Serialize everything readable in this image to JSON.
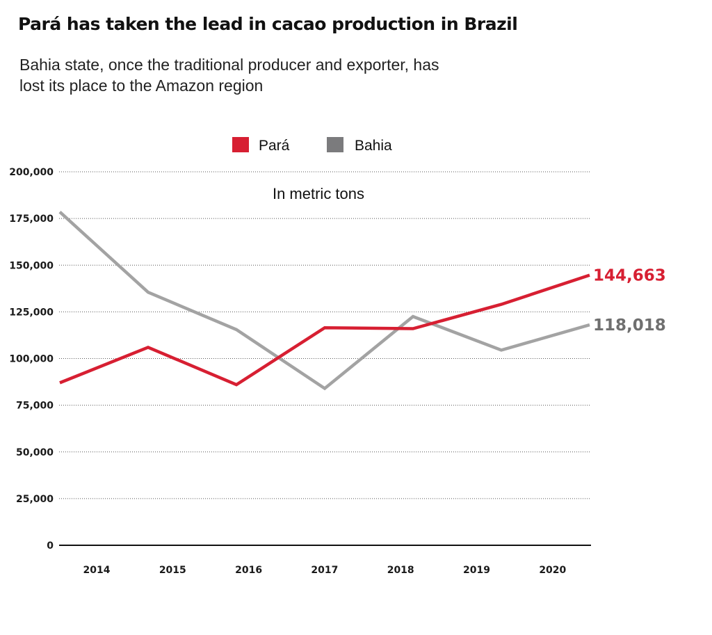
{
  "title": "Pará has taken the lead in cacao production in Brazil",
  "subtitle": "Bahia state, once the traditional producer and exporter, has lost its place to the Amazon region",
  "chart_data": {
    "type": "line",
    "categories": [
      "2014",
      "2015",
      "2016",
      "2017",
      "2018",
      "2019",
      "2020"
    ],
    "series": [
      {
        "name": "Pará",
        "color": "#d71f32",
        "values": [
          87000,
          106000,
          86000,
          116500,
          116000,
          129000,
          144663
        ]
      },
      {
        "name": "Bahia",
        "color": "#a3a3a3",
        "swatch_color": "#7b7b7d",
        "values": [
          178500,
          135500,
          115500,
          84000,
          122500,
          104500,
          118018
        ]
      }
    ],
    "end_labels": [
      {
        "series": "Pará",
        "text": "144,663",
        "color": "#d71f32"
      },
      {
        "series": "Bahia",
        "text": "118,018",
        "color": "#6f6f6f"
      }
    ],
    "annotation": "In metric tons",
    "ylim": [
      0,
      200000
    ],
    "yticks": [
      0,
      25000,
      50000,
      75000,
      100000,
      125000,
      150000,
      175000,
      200000
    ],
    "ytick_labels": [
      "0",
      "25,000",
      "50,000",
      "75,000",
      "100,000",
      "125,000",
      "150,000",
      "175,000",
      "200,000"
    ],
    "grid": "horizontal dotted",
    "legend_position": "top-center",
    "xlabel": "",
    "ylabel": ""
  }
}
